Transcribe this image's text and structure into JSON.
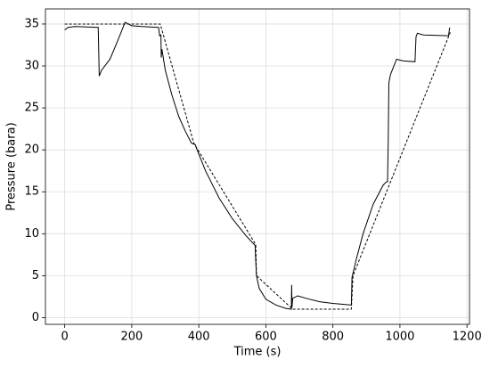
{
  "chart_data": {
    "type": "line",
    "xlabel": "Time (s)",
    "ylabel": "Pressure (bara)",
    "series": [
      {
        "color": "#000000",
        "dash": false,
        "x": [
          0,
          10,
          30,
          100,
          103,
          110,
          135,
          160,
          180,
          190,
          200,
          230,
          280,
          283,
          287,
          288,
          290,
          300,
          320,
          340,
          360,
          378,
          390,
          392,
          420,
          460,
          500,
          540,
          568,
          569,
          572,
          580,
          600,
          630,
          660,
          676,
          677,
          678,
          680,
          695,
          720,
          760,
          800,
          855,
          857,
          870,
          890,
          920,
          950,
          960,
          963,
          965,
          967,
          972,
          990,
          1010,
          1045,
          1048,
          1052,
          1070,
          1145,
          1148,
          1150
        ],
        "values": [
          34.3,
          34.6,
          34.7,
          34.6,
          28.8,
          29.5,
          30.8,
          33.2,
          35.2,
          35,
          34.8,
          34.7,
          34.6,
          33.6,
          33.7,
          31,
          32,
          29.5,
          26.5,
          24,
          22.2,
          20.8,
          20.6,
          20.3,
          17.5,
          14.3,
          11.8,
          9.8,
          8.6,
          7.5,
          5,
          3.5,
          2.2,
          1.5,
          1.1,
          1.0,
          3.9,
          1.2,
          2.3,
          2.6,
          2.3,
          1.9,
          1.7,
          1.5,
          4.8,
          7,
          10,
          13.5,
          15.8,
          16.2,
          16.2,
          21,
          28,
          29,
          30.8,
          30.6,
          30.5,
          33.5,
          33.9,
          33.7,
          33.6,
          34.5,
          34.5
        ]
      },
      {
        "color": "#000000",
        "dash": true,
        "x": [
          0,
          285,
          385,
          570,
          572,
          680,
          855,
          860,
          1150
        ],
        "values": [
          35,
          35,
          20.8,
          8.7,
          5,
          1,
          1,
          5,
          34
        ]
      }
    ],
    "xlim": [
      -57.5,
      1207.5
    ],
    "xticks": [
      0,
      200,
      400,
      600,
      800,
      1000,
      1200
    ],
    "ylim": [
      -0.8,
      36.8
    ],
    "yticks": [
      0,
      5,
      10,
      15,
      20,
      25,
      30,
      35
    ],
    "grid": true
  }
}
